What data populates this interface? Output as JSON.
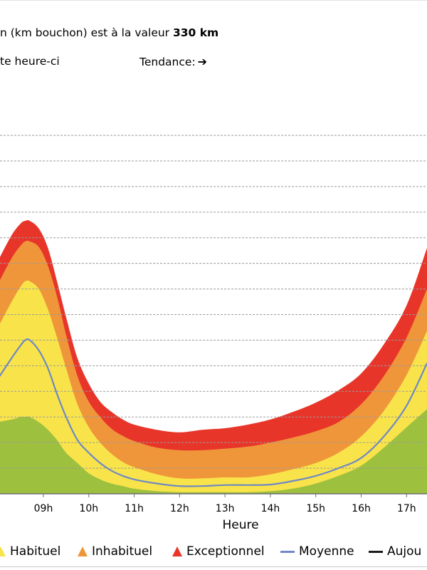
{
  "header": {
    "line1_prefix": "n (km bouchon) est à la valeur ",
    "line1_value": "330 km",
    "line2": "te heure-ci",
    "trend_label": "Tendance:",
    "trend_icon": "right-arrow-icon"
  },
  "chart_data": {
    "type": "area",
    "xlabel": "Heure",
    "x_ticks": [
      "09h",
      "10h",
      "11h",
      "12h",
      "13h",
      "14h",
      "15h",
      "16h",
      "17h"
    ],
    "x_tick_hours": [
      9,
      10,
      11,
      12,
      13,
      14,
      15,
      16,
      17
    ],
    "xlim": [
      7.95,
      17.45
    ],
    "ylim": [
      0,
      700
    ],
    "gridlines_y": [
      50,
      100,
      150,
      200,
      250,
      300,
      350,
      400,
      450,
      500,
      550,
      600,
      650,
      700
    ],
    "grid": "horizontal dashed",
    "x": [
      8.0,
      8.3,
      8.5,
      8.6,
      8.7,
      8.9,
      9.1,
      9.3,
      9.5,
      9.75,
      10.0,
      10.25,
      10.5,
      10.75,
      11.0,
      11.5,
      12.0,
      12.5,
      13.0,
      13.5,
      14.0,
      14.5,
      15.0,
      15.5,
      16.0,
      16.5,
      17.0,
      17.45
    ],
    "series": [
      {
        "name": "Habituel",
        "color": "#f8e44a",
        "values": [
          325,
          375,
          405,
          415,
          415,
          400,
          360,
          305,
          245,
          175,
          130,
          100,
          78,
          62,
          52,
          38,
          30,
          30,
          32,
          32,
          38,
          48,
          60,
          80,
          112,
          162,
          232,
          318
        ]
      },
      {
        "name": "Inhabituel",
        "color": "#f0963a",
        "values": [
          410,
          460,
          485,
          493,
          493,
          482,
          445,
          385,
          310,
          230,
          180,
          150,
          127,
          113,
          103,
          90,
          85,
          85,
          88,
          92,
          100,
          110,
          122,
          140,
          175,
          230,
          305,
          400
        ]
      },
      {
        "name": "Exceptionnel",
        "color": "#e8352a",
        "values": [
          455,
          505,
          528,
          533,
          533,
          518,
          480,
          415,
          345,
          265,
          215,
          180,
          160,
          145,
          135,
          125,
          120,
          125,
          128,
          135,
          145,
          160,
          178,
          202,
          235,
          292,
          368,
          480
        ]
      },
      {
        "name": "Moyenne",
        "color": "#6f88c4",
        "values": [
          225,
          265,
          290,
          300,
          300,
          280,
          245,
          195,
          150,
          105,
          80,
          60,
          45,
          35,
          28,
          20,
          15,
          15,
          17,
          17,
          18,
          25,
          35,
          50,
          70,
          112,
          172,
          255
        ]
      },
      {
        "name": "",
        "color": "#9ec03f",
        "values": [
          140,
          145,
          150,
          150,
          150,
          140,
          125,
          105,
          80,
          60,
          40,
          28,
          20,
          15,
          10,
          5,
          3,
          3,
          3,
          3,
          5,
          10,
          20,
          35,
          55,
          90,
          130,
          165
        ]
      }
    ],
    "legend": [
      "Habituel",
      "Inhabituel",
      "Exceptionnel",
      "Moyenne",
      "Aujou"
    ],
    "legend_placement": "bottom"
  },
  "legend": {
    "habituel": "Habituel",
    "inhabituel": "Inhabituel",
    "exceptionnel": "Exceptionnel",
    "moyenne": "Moyenne",
    "aujourd": "Aujou"
  },
  "colors": {
    "green_base": "#9ec03f",
    "habituel": "#f8e44a",
    "inhabituel": "#f0963a",
    "exceptionnel": "#e8352a",
    "moyenne": "#6f88c4",
    "aujourd": "#1a1a1a",
    "grid": "#9a9a9a",
    "axis": "#6e6e6e"
  }
}
